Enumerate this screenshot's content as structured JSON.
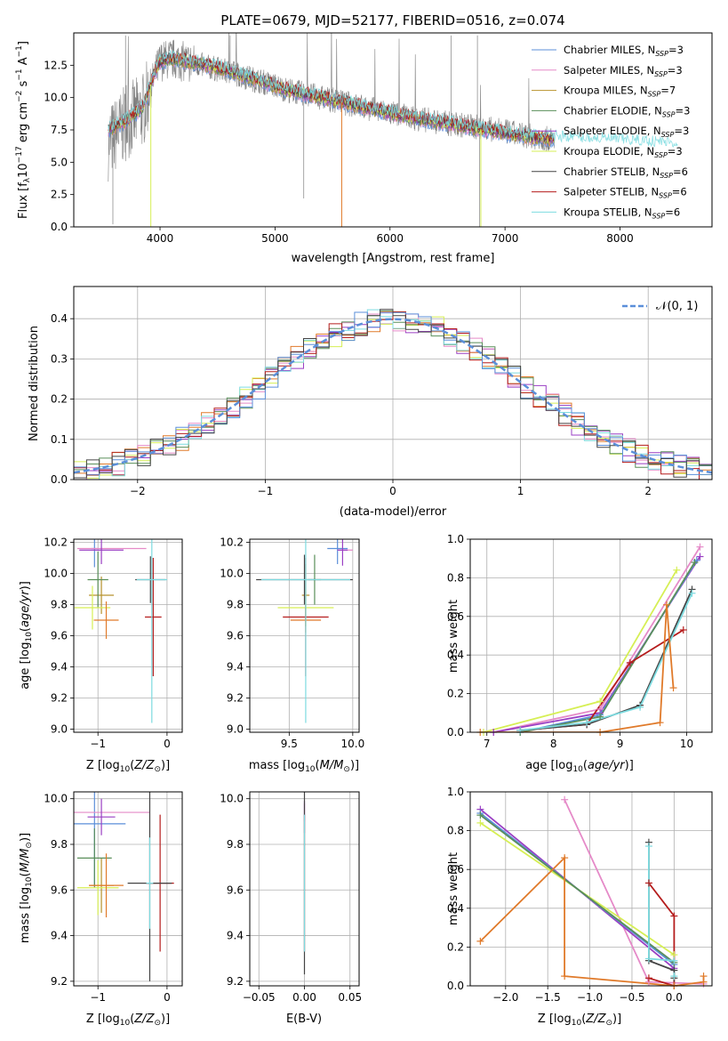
{
  "colors": {
    "chabrier_miles": "#5b8fd9",
    "salpeter_miles": "#e58ac8",
    "kroupa_miles": "#b8922d",
    "chabrier_elodie": "#5a8f5a",
    "salpeter_elodie": "#9a3fc4",
    "kroupa_elodie": "#d6ef55",
    "chabrier_stelib": "#444444",
    "salpeter_stelib": "#b51c1c",
    "kroupa_stelib": "#7ddbe0",
    "orange": "#e07a2a",
    "gaussian": "#5b8fd9",
    "data_grey": "#808080"
  },
  "chart_data": [
    {
      "id": "spectrum",
      "type": "line",
      "title": "PLATE=0679, MJD=52177, FIBERID=0516, z=0.074",
      "xlabel": "wavelength [Angstrom, rest frame]",
      "ylabel": "Flux [f_λ 10^-17 erg cm^-2 s^-1 A^-1]",
      "xlim": [
        3250,
        8800
      ],
      "ylim": [
        0,
        15
      ],
      "xticks": [
        4000,
        5000,
        6000,
        7000,
        8000
      ],
      "yticks": [
        0.0,
        2.5,
        5.0,
        7.5,
        10.0,
        12.5
      ],
      "legend_position": "top-right",
      "legend": [
        {
          "label": "Chabrier MILES, N_SSP=3",
          "color_key": "chabrier_miles"
        },
        {
          "label": "Salpeter MILES, N_SSP=3",
          "color_key": "salpeter_miles"
        },
        {
          "label": "Kroupa MILES, N_SSP=7",
          "color_key": "kroupa_miles"
        },
        {
          "label": "Chabrier ELODIE, N_SSP=3",
          "color_key": "chabrier_elodie"
        },
        {
          "label": "Salpeter ELODIE, N_SSP=3",
          "color_key": "salpeter_elodie"
        },
        {
          "label": "Kroupa ELODIE, N_SSP=3",
          "color_key": "kroupa_elodie"
        },
        {
          "label": "Chabrier STELIB, N_SSP=6",
          "color_key": "chabrier_stelib"
        },
        {
          "label": "Salpeter STELIB, N_SSP=6",
          "color_key": "salpeter_stelib"
        },
        {
          "label": "Kroupa STELIB, N_SSP=6",
          "color_key": "kroupa_stelib"
        }
      ],
      "data_continuum": {
        "x": [
          3550,
          3700,
          3850,
          3950,
          4000,
          4100,
          4300,
          4500,
          4700,
          4900,
          5100,
          5300,
          5500,
          5700,
          5900,
          6100,
          6300,
          6500,
          6700,
          6900,
          7100,
          7300,
          7430
        ],
        "y": [
          6.5,
          8.0,
          9.0,
          11.5,
          12.8,
          13.0,
          12.6,
          12.2,
          11.7,
          11.2,
          10.6,
          10.2,
          9.8,
          9.4,
          9.0,
          8.6,
          8.3,
          8.0,
          7.8,
          7.5,
          7.2,
          6.9,
          6.7
        ]
      },
      "model_continuum": {
        "x": [
          3550,
          3700,
          3850,
          3950,
          4000,
          4100,
          4300,
          4500,
          4700,
          4900,
          5100,
          5300,
          5500,
          5700,
          5900,
          6100,
          6300,
          6500,
          6700,
          6900,
          7100,
          7300,
          7500,
          7700,
          7900,
          8100,
          8300,
          8500
        ],
        "y": [
          7.5,
          8.2,
          9.2,
          11.8,
          12.8,
          13.0,
          12.7,
          12.3,
          11.8,
          11.2,
          10.6,
          10.2,
          9.8,
          9.4,
          9.0,
          8.6,
          8.3,
          8.0,
          7.7,
          7.4,
          7.1,
          6.9,
          6.8,
          6.7,
          6.6,
          6.5,
          6.4,
          6.3
        ]
      }
    },
    {
      "id": "residuals",
      "type": "step",
      "xlabel": "(data-model)/error",
      "ylabel": "Normed distribution",
      "xlim": [
        -2.5,
        2.5
      ],
      "ylim": [
        0,
        0.48
      ],
      "xticks": [
        -2,
        -1,
        0,
        1,
        2
      ],
      "yticks": [
        0.0,
        0.1,
        0.2,
        0.3,
        0.4
      ],
      "legend_position": "top-right",
      "legend": [
        {
          "label": "𝒩(0, 1)",
          "color_key": "gaussian",
          "style": "dashed"
        }
      ],
      "bin_width": 0.1,
      "bin_start": -2.5
    },
    {
      "id": "age_vs_Z",
      "type": "errorbar",
      "xlabel": "Z [log10(Z/Z⊙)]",
      "ylabel": "age [log10(age/yr)]",
      "xlim": [
        -1.35,
        0.22
      ],
      "ylim": [
        8.98,
        10.22
      ],
      "xticks": [
        -1,
        0
      ],
      "yticks": [
        9.0,
        9.2,
        9.4,
        9.6,
        9.8,
        10.0,
        10.2
      ],
      "points": [
        {
          "c": "chabrier_miles",
          "x": -1.05,
          "xe": 0.05,
          "y": 10.16,
          "ye": 0.12
        },
        {
          "c": "salpeter_miles",
          "x": -0.8,
          "xe": 0.5,
          "y": 10.16,
          "ye": 0.0
        },
        {
          "c": "kroupa_miles",
          "x": -0.95,
          "xe": 0.18,
          "y": 9.86,
          "ye": 0.12
        },
        {
          "c": "chabrier_elodie",
          "x": -1.0,
          "xe": 0.15,
          "y": 9.96,
          "ye": 0.18
        },
        {
          "c": "salpeter_elodie",
          "x": -0.95,
          "xe": 0.32,
          "y": 10.15,
          "ye": 0.09
        },
        {
          "c": "kroupa_elodie",
          "x": -1.08,
          "xe": 0.26,
          "y": 9.78,
          "ye": 0.14
        },
        {
          "c": "orange",
          "x": -0.88,
          "xe": 0.18,
          "y": 9.7,
          "ye": 0.12
        },
        {
          "c": "salpeter_stelib",
          "x": -0.2,
          "xe": 0.12,
          "y": 9.72,
          "ye": 0.38
        },
        {
          "c": "chabrier_stelib",
          "x": -0.24,
          "xe": 0.22,
          "y": 9.96,
          "ye": 0.15
        },
        {
          "c": "kroupa_stelib",
          "x": -0.22,
          "xe": 0.22,
          "y": 9.96,
          "ye": 0.92
        }
      ]
    },
    {
      "id": "age_vs_mass",
      "type": "errorbar",
      "xlabel": "mass [log10(M/M⊙)]",
      "ylabel": "",
      "xlim": [
        9.19,
        10.05
      ],
      "ylim": [
        8.98,
        10.22
      ],
      "xticks": [
        9.5,
        10.0
      ],
      "yticks": [
        9.0,
        9.2,
        9.4,
        9.6,
        9.8,
        10.0,
        10.2
      ],
      "points": [
        {
          "c": "chabrier_miles",
          "x": 9.88,
          "xe": 0.08,
          "y": 10.16,
          "ye": 0.1
        },
        {
          "c": "salpeter_miles",
          "x": 9.94,
          "xe": 0.06,
          "y": 10.15,
          "ye": 0.0
        },
        {
          "c": "kroupa_miles",
          "x": 9.63,
          "xe": 0.03,
          "y": 9.86,
          "ye": 0.2
        },
        {
          "c": "chabrier_elodie",
          "x": 9.7,
          "xe": 0.05,
          "y": 9.96,
          "ye": 0.16
        },
        {
          "c": "salpeter_elodie",
          "x": 9.92,
          "xe": 0.04,
          "y": 10.15,
          "ye": 0.1
        },
        {
          "c": "kroupa_elodie",
          "x": 9.63,
          "xe": 0.22,
          "y": 9.78,
          "ye": 0.12
        },
        {
          "c": "orange",
          "x": 9.63,
          "xe": 0.12,
          "y": 9.7,
          "ye": 0.08
        },
        {
          "c": "salpeter_stelib",
          "x": 9.63,
          "xe": 0.18,
          "y": 9.72,
          "ye": 0.38
        },
        {
          "c": "chabrier_stelib",
          "x": 9.62,
          "xe": 0.38,
          "y": 9.96,
          "ye": 0.16
        },
        {
          "c": "kroupa_stelib",
          "x": 9.63,
          "xe": 0.35,
          "y": 9.96,
          "ye": 0.92
        }
      ]
    },
    {
      "id": "massweight_vs_age",
      "type": "line",
      "xlabel": "age [log10(age/yr)]",
      "ylabel": "mass weight",
      "xlim": [
        6.75,
        10.38
      ],
      "ylim": [
        0,
        1.0
      ],
      "xticks": [
        7,
        8,
        9,
        10
      ],
      "yticks": [
        0.0,
        0.2,
        0.4,
        0.6,
        0.8,
        1.0
      ],
      "series": [
        {
          "c": "kroupa_elodie",
          "x": [
            6.95,
            8.7,
            9.85
          ],
          "y": [
            0.0,
            0.16,
            0.84
          ]
        },
        {
          "c": "salpeter_miles",
          "x": [
            7.1,
            8.7,
            10.2
          ],
          "y": [
            0.0,
            0.12,
            0.96
          ]
        },
        {
          "c": "salpeter_elodie",
          "x": [
            7.1,
            8.7,
            10.2
          ],
          "y": [
            0.0,
            0.1,
            0.91
          ]
        },
        {
          "c": "chabrier_miles",
          "x": [
            7.5,
            8.7,
            10.15
          ],
          "y": [
            0.0,
            0.09,
            0.89
          ]
        },
        {
          "c": "chabrier_elodie",
          "x": [
            7.5,
            8.7,
            10.12
          ],
          "y": [
            0.0,
            0.08,
            0.88
          ]
        },
        {
          "c": "salpeter_stelib",
          "x": [
            7.5,
            8.5,
            9.15,
            9.95
          ],
          "y": [
            0.01,
            0.04,
            0.36,
            0.53
          ]
        },
        {
          "c": "chabrier_stelib",
          "x": [
            7.5,
            8.5,
            9.3,
            10.08
          ],
          "y": [
            0.01,
            0.04,
            0.14,
            0.74
          ]
        },
        {
          "c": "kroupa_stelib",
          "x": [
            7.5,
            8.5,
            9.3,
            10.08
          ],
          "y": [
            0.01,
            0.05,
            0.13,
            0.72
          ]
        },
        {
          "c": "orange",
          "x": [
            6.9,
            8.7,
            9.6,
            9.7,
            9.8
          ],
          "y": [
            0.0,
            0.0,
            0.05,
            0.66,
            0.23
          ]
        }
      ]
    },
    {
      "id": "mass_vs_Z",
      "type": "errorbar",
      "xlabel": "Z [log10(Z/Z⊙)]",
      "ylabel": "mass [log10(M/M⊙)]",
      "xlim": [
        -1.35,
        0.22
      ],
      "ylim": [
        9.18,
        10.03
      ],
      "xticks": [
        -1,
        0
      ],
      "yticks": [
        9.2,
        9.4,
        9.6,
        9.8,
        10.0
      ],
      "points": [
        {
          "c": "chabrier_miles",
          "x": -1.05,
          "xe": 0.45,
          "y": 9.89,
          "ye": 0.27
        },
        {
          "c": "salpeter_miles",
          "x": -0.8,
          "xe": 0.55,
          "y": 9.94,
          "ye": 0.0
        },
        {
          "c": "kroupa_miles",
          "x": -0.95,
          "xe": 0.18,
          "y": 9.62,
          "ye": 0.12
        },
        {
          "c": "chabrier_elodie",
          "x": -1.05,
          "xe": 0.25,
          "y": 9.74,
          "ye": 0.13
        },
        {
          "c": "salpeter_elodie",
          "x": -0.95,
          "xe": 0.2,
          "y": 9.92,
          "ye": 0.08
        },
        {
          "c": "kroupa_elodie",
          "x": -1.0,
          "xe": 0.3,
          "y": 9.61,
          "ye": 0.12
        },
        {
          "c": "orange",
          "x": -0.88,
          "xe": 0.25,
          "y": 9.62,
          "ye": 0.14
        },
        {
          "c": "salpeter_stelib",
          "x": -0.1,
          "xe": 0.2,
          "y": 9.63,
          "ye": 0.3
        },
        {
          "c": "chabrier_stelib",
          "x": -0.25,
          "xe": 0.32,
          "y": 9.63,
          "ye": 0.43
        },
        {
          "c": "kroupa_stelib",
          "x": -0.25,
          "xe": 0.05,
          "y": 9.63,
          "ye": 0.2
        }
      ]
    },
    {
      "id": "mass_vs_ebv",
      "type": "errorbar",
      "xlabel": "E(B-V)",
      "ylabel": "",
      "xlim": [
        -0.06,
        0.06
      ],
      "ylim": [
        9.18,
        10.03
      ],
      "xticks": [
        -0.05,
        0.0,
        0.05
      ],
      "xticklabels": [
        "−0.05",
        "0.00",
        "0.05"
      ],
      "yticks": [
        9.2,
        9.4,
        9.6,
        9.8,
        10.0
      ],
      "points": [
        {
          "c": "salpeter_miles",
          "x": 0.0,
          "xe": 0.0,
          "y": 9.94,
          "ye": 0.04
        },
        {
          "c": "salpeter_elodie",
          "x": 0.0,
          "xe": 0.0,
          "y": 9.92,
          "ye": 0.07
        },
        {
          "c": "salpeter_stelib",
          "x": 0.0,
          "xe": 0.0,
          "y": 9.63,
          "ye": 0.3
        },
        {
          "c": "chabrier_stelib",
          "x": 0.0,
          "xe": 0.0,
          "y": 9.63,
          "ye": 0.4
        },
        {
          "c": "kroupa_stelib",
          "x": 0.0,
          "xe": 0.0,
          "y": 9.63,
          "ye": 0.3
        }
      ]
    },
    {
      "id": "massweight_vs_Z",
      "type": "line",
      "xlabel": "Z [log10(Z/Z⊙)]",
      "ylabel": "mass weight",
      "xlim": [
        -2.42,
        0.45
      ],
      "ylim": [
        0,
        1.0
      ],
      "xticks": [
        -2.0,
        -1.5,
        -1.0,
        -0.5,
        0.0
      ],
      "xticklabels": [
        "−2.0",
        "−1.5",
        "−1.0",
        "−0.5",
        "0.0"
      ],
      "yticks": [
        0.0,
        0.2,
        0.4,
        0.6,
        0.8,
        1.0
      ],
      "series": [
        {
          "c": "salpeter_miles",
          "x": [
            -1.3,
            -0.3,
            0.35
          ],
          "y": [
            0.96,
            0.02,
            0.01
          ]
        },
        {
          "c": "kroupa_elodie",
          "x": [
            -2.3,
            0.0
          ],
          "y": [
            0.84,
            0.16
          ]
        },
        {
          "c": "salpeter_elodie",
          "x": [
            -2.3,
            0.0
          ],
          "y": [
            0.91,
            0.09
          ]
        },
        {
          "c": "chabrier_miles",
          "x": [
            -2.3,
            0.0
          ],
          "y": [
            0.89,
            0.11
          ]
        },
        {
          "c": "chabrier_elodie",
          "x": [
            -2.3,
            0.0
          ],
          "y": [
            0.88,
            0.12
          ]
        },
        {
          "c": "salpeter_stelib",
          "x": [
            -0.3,
            0.0,
            0.0,
            -0.3
          ],
          "y": [
            0.53,
            0.36,
            0.0,
            0.04
          ]
        },
        {
          "c": "chabrier_stelib",
          "x": [
            -0.3,
            -0.3,
            0.0,
            0.0
          ],
          "y": [
            0.74,
            0.13,
            0.08,
            0.04
          ]
        },
        {
          "c": "kroupa_stelib",
          "x": [
            -0.3,
            -0.3,
            0.0,
            0.0
          ],
          "y": [
            0.72,
            0.14,
            0.13,
            0.05
          ]
        },
        {
          "c": "orange",
          "x": [
            -2.3,
            -1.3,
            -1.3,
            0.0,
            0.35,
            0.35
          ],
          "y": [
            0.23,
            0.66,
            0.05,
            0.0,
            0.02,
            0.05
          ]
        }
      ]
    }
  ]
}
